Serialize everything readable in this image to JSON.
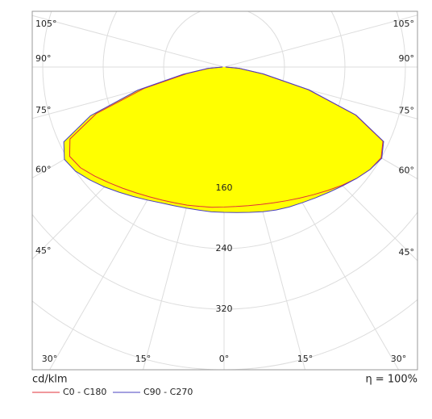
{
  "chart_data": {
    "type": "polar",
    "unit": "cd/klm",
    "efficiency": "η = 100%",
    "fill_color": "#ffff00",
    "rlim": [
      0,
      400
    ],
    "rticks": [
      {
        "value": 80,
        "label": null
      },
      160,
      240,
      320,
      {
        "value": 400,
        "label": null
      }
    ],
    "angle_ticks": [
      {
        "value": 0,
        "label": "0°"
      },
      {
        "value": 15,
        "label": "15°"
      },
      {
        "value": 30,
        "label": "30°"
      },
      {
        "value": 45,
        "label": "45°"
      },
      {
        "value": 60,
        "label": "60°"
      },
      {
        "value": 75,
        "label": "75°"
      },
      {
        "value": 90,
        "label": "90°"
      },
      {
        "value": 105,
        "label": "105°"
      }
    ],
    "x": [
      -90,
      -85,
      -80,
      -75,
      -70,
      -65,
      -60,
      -55,
      -50,
      -45,
      -40,
      -35,
      -30,
      -25,
      -20,
      -15,
      -10,
      -5,
      0,
      5,
      10,
      15,
      20,
      25,
      30,
      35,
      40,
      45,
      50,
      55,
      60,
      65,
      70,
      75,
      80,
      85,
      90
    ],
    "series": [
      {
        "name": "C0 - C180",
        "color": "#e0303a",
        "values": [
          2,
          20,
          50,
          110,
          180,
          225,
          236,
          232,
          224,
          216,
          209,
          203,
          198,
          194,
          191,
          189,
          187,
          186,
          185,
          185,
          186,
          188,
          191,
          195,
          200,
          206,
          213,
          221,
          229,
          236,
          240,
          232,
          185,
          115,
          52,
          20,
          2
        ]
      },
      {
        "name": "C90 - C270",
        "color": "#4a40c0",
        "values": [
          2,
          22,
          55,
          118,
          188,
          234,
          244,
          240,
          232,
          224,
          216,
          209,
          203,
          198,
          195,
          193,
          192,
          192,
          192,
          193,
          195,
          198,
          201,
          204,
          207,
          211,
          216,
          222,
          229,
          236,
          241,
          233,
          186,
          116,
          53,
          20,
          2
        ]
      }
    ]
  }
}
